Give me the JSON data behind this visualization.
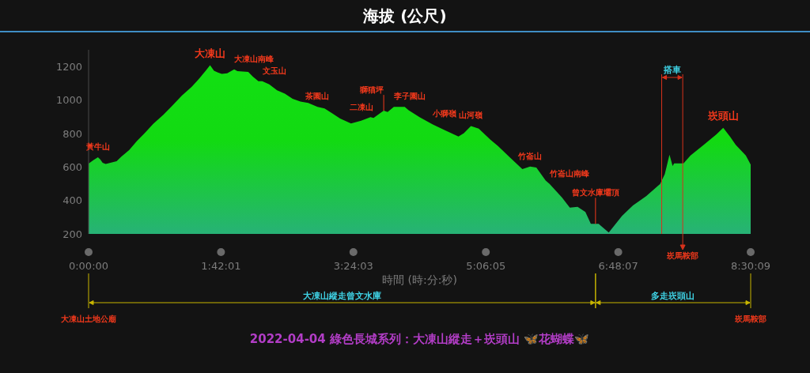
{
  "chart_data": {
    "type": "area",
    "title": "海拔 (公尺)",
    "xlabel": "時間 (時:分:秒)",
    "color": "#12e012",
    "x": [
      0,
      0.06,
      0.12,
      0.15,
      0.18,
      0.22,
      0.28,
      0.36,
      0.42,
      0.52,
      0.62,
      0.72,
      0.83,
      0.96,
      1.06,
      1.2,
      1.32,
      1.4,
      1.5,
      1.56,
      1.61,
      1.66,
      1.71,
      1.78,
      1.87,
      1.91,
      2.05,
      2.11,
      2.18,
      2.23,
      2.32,
      2.42,
      2.52,
      2.62,
      2.72,
      2.82,
      2.94,
      3.03,
      3.13,
      3.23,
      3.37,
      3.5,
      3.62,
      3.66,
      3.74,
      3.79,
      3.84,
      3.92,
      4.06,
      4.11,
      4.25,
      4.42,
      4.58,
      4.75,
      4.82,
      4.91,
      5.01,
      5.16,
      5.26,
      5.4,
      5.57,
      5.67,
      5.75,
      5.87,
      5.92,
      6.08,
      6.18,
      6.28,
      6.38,
      6.45,
      6.55,
      6.68,
      6.85,
      6.99,
      7.16,
      7.34,
      7.4,
      7.46,
      7.5,
      7.52,
      7.64,
      7.73,
      7.9,
      8.06,
      8.15,
      8.24,
      8.31,
      8.44,
      8.5025
    ],
    "values": [
      620,
      640,
      658,
      645,
      625,
      618,
      625,
      634,
      661,
      700,
      755,
      802,
      857,
      912,
      959,
      1027,
      1077,
      1117,
      1172,
      1208,
      1175,
      1164,
      1156,
      1159,
      1183,
      1172,
      1168,
      1140,
      1112,
      1112,
      1093,
      1058,
      1038,
      1007,
      991,
      983,
      959,
      949,
      920,
      889,
      860,
      876,
      897,
      893,
      920,
      936,
      928,
      959,
      959,
      939,
      897,
      854,
      818,
      782,
      802,
      845,
      829,
      763,
      724,
      661,
      587,
      602,
      596,
      519,
      499,
      417,
      357,
      362,
      331,
      260,
      260,
      208,
      307,
      370,
      425,
      499,
      558,
      673,
      606,
      621,
      621,
      668,
      732,
      794,
      834,
      779,
      732,
      668,
      614
    ],
    "xlim": [
      0,
      8.5025
    ],
    "xticks": [
      {
        "value": 0,
        "label": "0:00:00"
      },
      {
        "value": 1.700278,
        "label": "1:42:01"
      },
      {
        "value": 3.400833,
        "label": "3:24:03"
      },
      {
        "value": 5.101389,
        "label": "5:06:05"
      },
      {
        "value": 6.801944,
        "label": "6:48:07"
      },
      {
        "value": 8.5025,
        "label": "8:30:09"
      }
    ],
    "ylim": [
      200,
      1300
    ],
    "yticks": [
      200,
      400,
      600,
      800,
      1000,
      1200
    ],
    "ref_lines": [
      {
        "axis": "x",
        "value": 7.36,
        "color": "#d8321c"
      },
      {
        "axis": "x",
        "value": 7.63,
        "color": "#d8321c",
        "label": "崁馬鞍部"
      }
    ],
    "annotations": [
      {
        "text": "黃牛山",
        "x": 0.12,
        "y": 658
      },
      {
        "text": "大凍山",
        "x": 1.56,
        "y": 1208
      },
      {
        "text": "大凍山南峰",
        "x": 1.87,
        "y": 1183
      },
      {
        "text": "文玉山",
        "x": 2.23,
        "y": 1112
      },
      {
        "text": "茶園山",
        "x": 2.94,
        "y": 959
      },
      {
        "text": "二凍山",
        "x": 3.66,
        "y": 893
      },
      {
        "text": "獅猫坪",
        "x": 3.79,
        "y": 936
      },
      {
        "text": "李子園山",
        "x": 3.92,
        "y": 959
      },
      {
        "text": "小獅嶺",
        "x": 4.42,
        "y": 854
      },
      {
        "text": "山河嶺",
        "x": 4.91,
        "y": 845
      },
      {
        "text": "竹崙山",
        "x": 5.67,
        "y": 602
      },
      {
        "text": "竹崙山南峰",
        "x": 5.92,
        "y": 499
      },
      {
        "text": "曾文水庫壩頂",
        "x": 6.51,
        "y": 260
      },
      {
        "text": "崁頭山",
        "x": 8.15,
        "y": 834
      },
      "搭車",
      "大凍山縱走曾文水庫",
      "多走崁頭山",
      "大凍山土地公廟",
      "崁馬鞍部",
      "2022-04-04 綠色長城系列：大凍山縱走＋崁頭山 🦋花蝴蝶🦋"
    ]
  }
}
